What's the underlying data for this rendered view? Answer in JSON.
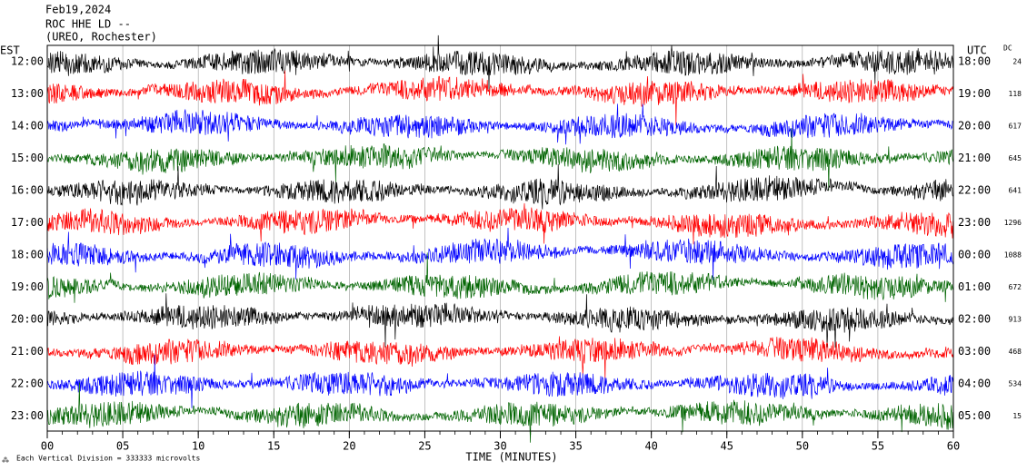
{
  "chart_data": {
    "type": "helicorder",
    "header": [
      "Feb19,2024",
      "ROC HHE LD --",
      "(UREO, Rochester)"
    ],
    "left_axis_label": "EST",
    "right_axis_label": "UTC",
    "dc_label": "DC",
    "x_label": "TIME (MINUTES)",
    "footer": "Each Vertical Division =  333333 microvolts",
    "xlim": [
      0,
      60
    ],
    "xticks": [
      {
        "value": 0,
        "label": "00"
      },
      {
        "value": 5,
        "label": "05"
      },
      10,
      15,
      20,
      25,
      30,
      35,
      40,
      45,
      50,
      55,
      60
    ],
    "rows": [
      {
        "est": "12:00",
        "utc": "18:00",
        "dc": 24,
        "color": "#000000"
      },
      {
        "est": "13:00",
        "utc": "19:00",
        "dc": 118,
        "color": "#ff0000"
      },
      {
        "est": "14:00",
        "utc": "20:00",
        "dc": 617,
        "color": "#0000ff"
      },
      {
        "est": "15:00",
        "utc": "21:00",
        "dc": 645,
        "color": "#006400"
      },
      {
        "est": "16:00",
        "utc": "22:00",
        "dc": 641,
        "color": "#000000"
      },
      {
        "est": "17:00",
        "utc": "23:00",
        "dc": 1296,
        "color": "#ff0000"
      },
      {
        "est": "18:00",
        "utc": "00:00",
        "dc": 1088,
        "color": "#0000ff"
      },
      {
        "est": "19:00",
        "utc": "01:00",
        "dc": 672,
        "color": "#006400"
      },
      {
        "est": "20:00",
        "utc": "02:00",
        "dc": 913,
        "color": "#000000"
      },
      {
        "est": "21:00",
        "utc": "03:00",
        "dc": 468,
        "color": "#ff0000"
      },
      {
        "est": "22:00",
        "utc": "04:00",
        "dc": 534,
        "color": "#0000ff"
      },
      {
        "est": "23:00",
        "utc": "05:00",
        "dc": 15,
        "color": "#006400"
      }
    ]
  }
}
